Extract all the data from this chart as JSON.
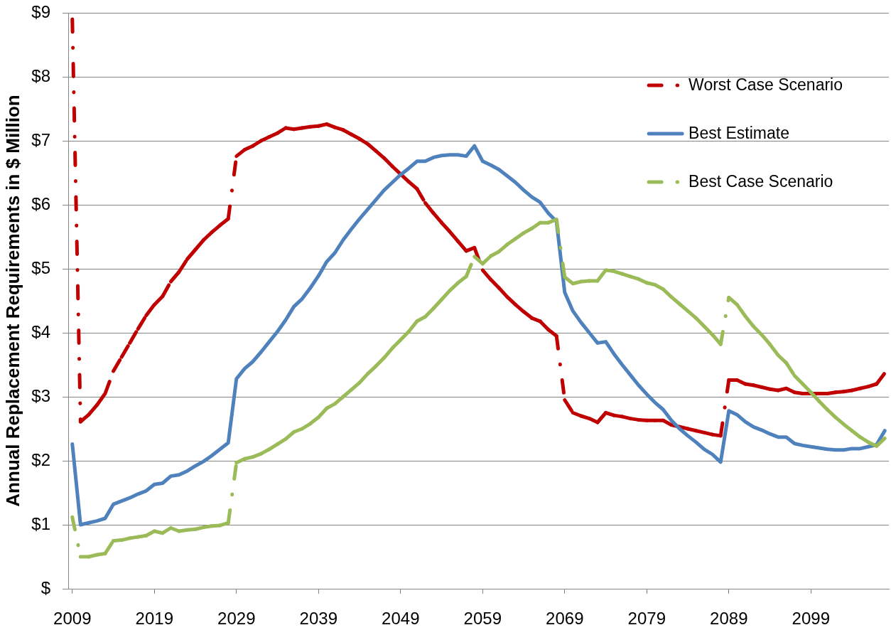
{
  "chart_data": {
    "type": "line",
    "ylabel": "Annual Replacement Requirements in $ Million",
    "x": [
      2009,
      2010,
      2011,
      2012,
      2013,
      2014,
      2015,
      2016,
      2017,
      2018,
      2019,
      2020,
      2021,
      2022,
      2023,
      2024,
      2025,
      2026,
      2027,
      2028,
      2029,
      2030,
      2031,
      2032,
      2033,
      2034,
      2035,
      2036,
      2037,
      2038,
      2039,
      2040,
      2041,
      2042,
      2043,
      2044,
      2045,
      2046,
      2047,
      2048,
      2049,
      2050,
      2051,
      2052,
      2053,
      2054,
      2055,
      2056,
      2057,
      2058,
      2059,
      2060,
      2061,
      2062,
      2063,
      2064,
      2065,
      2066,
      2067,
      2068,
      2069,
      2070,
      2071,
      2072,
      2073,
      2074,
      2075,
      2076,
      2077,
      2078,
      2079,
      2080,
      2081,
      2082,
      2083,
      2084,
      2085,
      2086,
      2087,
      2088,
      2089,
      2090,
      2091,
      2092,
      2093,
      2094,
      2095,
      2096,
      2097,
      2098,
      2099,
      2100,
      2101,
      2102,
      2103,
      2104,
      2105,
      2106,
      2107,
      2108
    ],
    "xlim": [
      2008.5,
      2108.5
    ],
    "xticks": [
      2009,
      2019,
      2029,
      2039,
      2049,
      2059,
      2069,
      2079,
      2089,
      2099
    ],
    "ylim": [
      0,
      9
    ],
    "yticks": [
      {
        "value": 0,
        "label": "$"
      },
      {
        "value": 1,
        "label": "$1"
      },
      {
        "value": 2,
        "label": "$2"
      },
      {
        "value": 3,
        "label": "$3"
      },
      {
        "value": 4,
        "label": "$4"
      },
      {
        "value": 5,
        "label": "$5"
      },
      {
        "value": 6,
        "label": "$6"
      },
      {
        "value": 7,
        "label": "$7"
      },
      {
        "value": 8,
        "label": "$8"
      },
      {
        "value": 9,
        "label": "$9"
      }
    ],
    "grid": "y",
    "legend": "top right",
    "marker": "none",
    "series": [
      {
        "name": "Worst Case Scenario",
        "color": "#c00000",
        "line_style": "dashed",
        "values": [
          8.9,
          2.61,
          2.72,
          2.87,
          3.05,
          3.4,
          3.62,
          3.84,
          4.06,
          4.27,
          4.44,
          4.57,
          4.8,
          4.95,
          5.15,
          5.3,
          5.45,
          5.57,
          5.68,
          5.78,
          6.76,
          6.86,
          6.92,
          7.0,
          7.06,
          7.12,
          7.2,
          7.18,
          7.2,
          7.22,
          7.23,
          7.26,
          7.21,
          7.17,
          7.1,
          7.03,
          6.95,
          6.84,
          6.73,
          6.6,
          6.48,
          6.36,
          6.25,
          6.03,
          5.87,
          5.72,
          5.58,
          5.43,
          5.28,
          5.33,
          4.98,
          4.83,
          4.7,
          4.56,
          4.44,
          4.33,
          4.23,
          4.18,
          4.05,
          3.95,
          2.95,
          2.75,
          2.7,
          2.66,
          2.6,
          2.75,
          2.71,
          2.69,
          2.66,
          2.64,
          2.63,
          2.63,
          2.63,
          2.56,
          2.53,
          2.5,
          2.47,
          2.44,
          2.41,
          2.39,
          3.26,
          3.26,
          3.2,
          3.18,
          3.15,
          3.12,
          3.1,
          3.13,
          3.07,
          3.05,
          3.05,
          3.05,
          3.05,
          3.07,
          3.08,
          3.1,
          3.13,
          3.16,
          3.2,
          3.37
        ]
      },
      {
        "name": "Best Estimate",
        "color": "#4f81bd",
        "line_style": "solid",
        "values": [
          2.26,
          1.0,
          1.03,
          1.06,
          1.1,
          1.32,
          1.37,
          1.42,
          1.48,
          1.53,
          1.63,
          1.65,
          1.76,
          1.78,
          1.84,
          1.92,
          1.99,
          2.08,
          2.18,
          2.28,
          3.28,
          3.44,
          3.55,
          3.7,
          3.86,
          4.02,
          4.2,
          4.41,
          4.53,
          4.7,
          4.89,
          5.11,
          5.25,
          5.45,
          5.62,
          5.78,
          5.93,
          6.08,
          6.23,
          6.35,
          6.47,
          6.57,
          6.68,
          6.68,
          6.74,
          6.77,
          6.78,
          6.78,
          6.76,
          6.92,
          6.68,
          6.62,
          6.55,
          6.45,
          6.35,
          6.23,
          6.12,
          6.04,
          5.87,
          5.74,
          4.63,
          4.34,
          4.16,
          4.0,
          3.84,
          3.86,
          3.67,
          3.5,
          3.34,
          3.18,
          3.04,
          2.91,
          2.8,
          2.63,
          2.5,
          2.39,
          2.29,
          2.18,
          2.1,
          1.98,
          2.78,
          2.72,
          2.61,
          2.53,
          2.48,
          2.42,
          2.37,
          2.37,
          2.27,
          2.24,
          2.22,
          2.2,
          2.18,
          2.17,
          2.17,
          2.19,
          2.19,
          2.22,
          2.25,
          2.47
        ]
      },
      {
        "name": "Best Case Scenario",
        "color": "#9bbb59",
        "line_style": "dashed",
        "values": [
          1.12,
          0.5,
          0.5,
          0.53,
          0.55,
          0.75,
          0.76,
          0.79,
          0.81,
          0.83,
          0.9,
          0.87,
          0.95,
          0.9,
          0.92,
          0.93,
          0.96,
          0.98,
          0.99,
          1.03,
          1.97,
          2.03,
          2.06,
          2.11,
          2.18,
          2.26,
          2.34,
          2.45,
          2.5,
          2.58,
          2.68,
          2.82,
          2.89,
          3.0,
          3.11,
          3.22,
          3.36,
          3.48,
          3.61,
          3.76,
          3.89,
          4.02,
          4.18,
          4.25,
          4.38,
          4.52,
          4.66,
          4.78,
          4.88,
          5.19,
          5.08,
          5.2,
          5.27,
          5.38,
          5.47,
          5.56,
          5.63,
          5.72,
          5.72,
          5.77,
          4.87,
          4.77,
          4.8,
          4.81,
          4.81,
          4.98,
          4.96,
          4.92,
          4.88,
          4.84,
          4.78,
          4.75,
          4.68,
          4.56,
          4.45,
          4.34,
          4.23,
          4.1,
          3.97,
          3.82,
          4.55,
          4.44,
          4.26,
          4.1,
          3.97,
          3.82,
          3.65,
          3.53,
          3.33,
          3.2,
          3.07,
          2.93,
          2.8,
          2.68,
          2.57,
          2.47,
          2.37,
          2.29,
          2.23,
          2.35
        ]
      }
    ]
  }
}
